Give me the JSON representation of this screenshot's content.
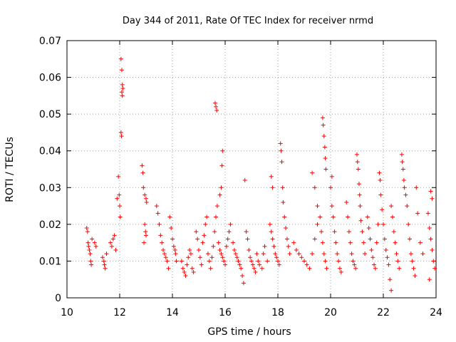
{
  "chart_data": {
    "type": "scatter",
    "title": "Day 344 of 2011, Rate Of TEC Index for receiver nrmd",
    "xlabel": "GPS time / hours",
    "ylabel": "ROTI / TECUs",
    "xlim": [
      10,
      24
    ],
    "ylim": [
      0,
      0.07
    ],
    "x_ticks": [
      "10",
      "12",
      "14",
      "16",
      "18",
      "20",
      "22",
      "24"
    ],
    "y_ticks": [
      "0",
      "0.01",
      "0.02",
      "0.03",
      "0.04",
      "0.05",
      "0.06",
      "0.07"
    ],
    "grid": true,
    "marker": "+",
    "colors": {
      "points": "#ff0000",
      "grid": "#a0a0a0",
      "axis": "#000000"
    },
    "series": [
      {
        "points": [
          [
            10.75,
            0.019
          ],
          [
            10.78,
            0.018
          ],
          [
            10.8,
            0.015
          ],
          [
            10.82,
            0.014
          ],
          [
            10.85,
            0.013
          ],
          [
            10.88,
            0.012
          ],
          [
            10.9,
            0.01
          ],
          [
            10.92,
            0.009
          ],
          [
            10.95,
            0.016
          ],
          [
            11.05,
            0.015
          ],
          [
            11.1,
            0.014
          ],
          [
            11.35,
            0.011
          ],
          [
            11.4,
            0.01
          ],
          [
            11.42,
            0.009
          ],
          [
            11.45,
            0.008
          ],
          [
            11.5,
            0.012
          ],
          [
            11.65,
            0.015
          ],
          [
            11.7,
            0.014
          ],
          [
            11.75,
            0.016
          ],
          [
            11.8,
            0.017
          ],
          [
            11.85,
            0.013
          ],
          [
            11.9,
            0.027
          ],
          [
            11.95,
            0.033
          ],
          [
            11.98,
            0.028
          ],
          [
            12.0,
            0.025
          ],
          [
            12.02,
            0.022
          ],
          [
            12.05,
            0.065
          ],
          [
            12.08,
            0.062
          ],
          [
            12.1,
            0.058
          ],
          [
            12.12,
            0.057
          ],
          [
            12.08,
            0.056
          ],
          [
            12.1,
            0.055
          ],
          [
            12.05,
            0.045
          ],
          [
            12.07,
            0.044
          ],
          [
            12.85,
            0.036
          ],
          [
            12.88,
            0.034
          ],
          [
            12.9,
            0.03
          ],
          [
            12.95,
            0.028
          ],
          [
            13.0,
            0.027
          ],
          [
            13.02,
            0.026
          ],
          [
            12.95,
            0.02
          ],
          [
            12.98,
            0.018
          ],
          [
            13.0,
            0.017
          ],
          [
            12.92,
            0.015
          ],
          [
            13.4,
            0.025
          ],
          [
            13.45,
            0.023
          ],
          [
            13.5,
            0.02
          ],
          [
            13.55,
            0.017
          ],
          [
            13.6,
            0.015
          ],
          [
            13.65,
            0.013
          ],
          [
            13.7,
            0.012
          ],
          [
            13.75,
            0.011
          ],
          [
            13.8,
            0.01
          ],
          [
            13.85,
            0.008
          ],
          [
            13.9,
            0.022
          ],
          [
            13.95,
            0.019
          ],
          [
            14.0,
            0.016
          ],
          [
            14.05,
            0.014
          ],
          [
            14.1,
            0.013
          ],
          [
            14.12,
            0.012
          ],
          [
            14.15,
            0.01
          ],
          [
            14.35,
            0.01
          ],
          [
            14.4,
            0.008
          ],
          [
            14.45,
            0.007
          ],
          [
            14.5,
            0.006
          ],
          [
            14.55,
            0.009
          ],
          [
            14.6,
            0.011
          ],
          [
            14.65,
            0.013
          ],
          [
            14.7,
            0.012
          ],
          [
            14.75,
            0.008
          ],
          [
            14.8,
            0.007
          ],
          [
            14.9,
            0.018
          ],
          [
            14.95,
            0.016
          ],
          [
            15.0,
            0.013
          ],
          [
            15.05,
            0.011
          ],
          [
            15.1,
            0.009
          ],
          [
            15.15,
            0.015
          ],
          [
            15.2,
            0.017
          ],
          [
            15.25,
            0.02
          ],
          [
            15.3,
            0.022
          ],
          [
            15.35,
            0.012
          ],
          [
            15.4,
            0.01
          ],
          [
            15.45,
            0.008
          ],
          [
            15.5,
            0.011
          ],
          [
            15.55,
            0.014
          ],
          [
            15.6,
            0.018
          ],
          [
            15.65,
            0.022
          ],
          [
            15.7,
            0.025
          ],
          [
            15.62,
            0.053
          ],
          [
            15.65,
            0.052
          ],
          [
            15.68,
            0.051
          ],
          [
            15.9,
            0.04
          ],
          [
            15.88,
            0.036
          ],
          [
            15.85,
            0.03
          ],
          [
            15.8,
            0.028
          ],
          [
            15.75,
            0.015
          ],
          [
            15.8,
            0.013
          ],
          [
            15.85,
            0.012
          ],
          [
            15.9,
            0.011
          ],
          [
            15.95,
            0.01
          ],
          [
            16.0,
            0.009
          ],
          [
            16.05,
            0.014
          ],
          [
            16.1,
            0.016
          ],
          [
            16.15,
            0.018
          ],
          [
            16.2,
            0.02
          ],
          [
            16.3,
            0.015
          ],
          [
            16.35,
            0.013
          ],
          [
            16.4,
            0.012
          ],
          [
            16.45,
            0.011
          ],
          [
            16.5,
            0.01
          ],
          [
            16.55,
            0.009
          ],
          [
            16.6,
            0.008
          ],
          [
            16.65,
            0.006
          ],
          [
            16.7,
            0.004
          ],
          [
            16.75,
            0.032
          ],
          [
            16.8,
            0.018
          ],
          [
            16.85,
            0.016
          ],
          [
            16.9,
            0.013
          ],
          [
            16.95,
            0.011
          ],
          [
            17.0,
            0.01
          ],
          [
            17.05,
            0.009
          ],
          [
            17.1,
            0.008
          ],
          [
            17.15,
            0.007
          ],
          [
            17.2,
            0.012
          ],
          [
            17.25,
            0.01
          ],
          [
            17.3,
            0.009
          ],
          [
            17.4,
            0.008
          ],
          [
            17.45,
            0.012
          ],
          [
            17.5,
            0.014
          ],
          [
            17.6,
            0.01
          ],
          [
            17.7,
            0.02
          ],
          [
            17.75,
            0.018
          ],
          [
            17.8,
            0.016
          ],
          [
            17.85,
            0.014
          ],
          [
            17.9,
            0.012
          ],
          [
            17.95,
            0.011
          ],
          [
            18.0,
            0.01
          ],
          [
            18.05,
            0.009
          ],
          [
            17.75,
            0.033
          ],
          [
            17.8,
            0.03
          ],
          [
            18.1,
            0.042
          ],
          [
            18.12,
            0.04
          ],
          [
            18.15,
            0.037
          ],
          [
            18.18,
            0.03
          ],
          [
            18.2,
            0.026
          ],
          [
            18.25,
            0.022
          ],
          [
            18.3,
            0.019
          ],
          [
            18.35,
            0.016
          ],
          [
            18.4,
            0.014
          ],
          [
            18.45,
            0.012
          ],
          [
            18.6,
            0.015
          ],
          [
            18.7,
            0.013
          ],
          [
            18.8,
            0.012
          ],
          [
            18.9,
            0.011
          ],
          [
            19.0,
            0.01
          ],
          [
            19.1,
            0.009
          ],
          [
            19.2,
            0.008
          ],
          [
            19.3,
            0.012
          ],
          [
            19.4,
            0.016
          ],
          [
            19.5,
            0.02
          ],
          [
            19.3,
            0.034
          ],
          [
            19.4,
            0.03
          ],
          [
            19.5,
            0.025
          ],
          [
            19.6,
            0.022
          ],
          [
            19.65,
            0.018
          ],
          [
            19.7,
            0.015
          ],
          [
            19.75,
            0.012
          ],
          [
            19.8,
            0.01
          ],
          [
            19.85,
            0.008
          ],
          [
            19.7,
            0.049
          ],
          [
            19.72,
            0.047
          ],
          [
            19.75,
            0.044
          ],
          [
            19.78,
            0.041
          ],
          [
            19.8,
            0.038
          ],
          [
            19.82,
            0.035
          ],
          [
            20.0,
            0.03
          ],
          [
            20.05,
            0.025
          ],
          [
            20.1,
            0.022
          ],
          [
            20.15,
            0.018
          ],
          [
            20.2,
            0.015
          ],
          [
            20.25,
            0.012
          ],
          [
            20.3,
            0.01
          ],
          [
            20.35,
            0.008
          ],
          [
            20.4,
            0.007
          ],
          [
            20.05,
            0.033
          ],
          [
            20.6,
            0.026
          ],
          [
            20.65,
            0.022
          ],
          [
            20.7,
            0.018
          ],
          [
            20.75,
            0.015
          ],
          [
            20.8,
            0.012
          ],
          [
            20.85,
            0.01
          ],
          [
            20.9,
            0.009
          ],
          [
            20.95,
            0.008
          ],
          [
            21.0,
            0.039
          ],
          [
            21.02,
            0.037
          ],
          [
            21.05,
            0.035
          ],
          [
            21.08,
            0.031
          ],
          [
            21.1,
            0.028
          ],
          [
            21.12,
            0.025
          ],
          [
            21.15,
            0.021
          ],
          [
            21.2,
            0.018
          ],
          [
            21.25,
            0.015
          ],
          [
            21.3,
            0.012
          ],
          [
            21.4,
            0.022
          ],
          [
            21.45,
            0.019
          ],
          [
            21.5,
            0.016
          ],
          [
            21.55,
            0.013
          ],
          [
            21.6,
            0.011
          ],
          [
            21.65,
            0.009
          ],
          [
            21.7,
            0.008
          ],
          [
            21.75,
            0.015
          ],
          [
            21.8,
            0.02
          ],
          [
            21.85,
            0.034
          ],
          [
            21.88,
            0.032
          ],
          [
            21.9,
            0.028
          ],
          [
            21.95,
            0.024
          ],
          [
            22.0,
            0.02
          ],
          [
            22.05,
            0.016
          ],
          [
            22.1,
            0.013
          ],
          [
            22.15,
            0.011
          ],
          [
            22.2,
            0.009
          ],
          [
            22.25,
            0.005
          ],
          [
            22.3,
            0.025
          ],
          [
            22.35,
            0.022
          ],
          [
            22.4,
            0.018
          ],
          [
            22.45,
            0.015
          ],
          [
            22.5,
            0.012
          ],
          [
            22.55,
            0.01
          ],
          [
            22.6,
            0.008
          ],
          [
            22.3,
            0.002
          ],
          [
            22.7,
            0.039
          ],
          [
            22.72,
            0.037
          ],
          [
            22.75,
            0.035
          ],
          [
            22.78,
            0.032
          ],
          [
            22.8,
            0.03
          ],
          [
            22.85,
            0.028
          ],
          [
            22.9,
            0.025
          ],
          [
            22.95,
            0.02
          ],
          [
            23.0,
            0.016
          ],
          [
            23.05,
            0.012
          ],
          [
            23.1,
            0.01
          ],
          [
            23.15,
            0.008
          ],
          [
            23.2,
            0.006
          ],
          [
            23.25,
            0.03
          ],
          [
            23.3,
            0.023
          ],
          [
            23.4,
            0.015
          ],
          [
            23.5,
            0.012
          ],
          [
            23.7,
            0.023
          ],
          [
            23.75,
            0.019
          ],
          [
            23.8,
            0.016
          ],
          [
            23.85,
            0.013
          ],
          [
            23.9,
            0.01
          ],
          [
            23.95,
            0.008
          ],
          [
            23.8,
            0.029
          ],
          [
            23.85,
            0.027
          ],
          [
            23.75,
            0.005
          ]
        ]
      }
    ]
  }
}
